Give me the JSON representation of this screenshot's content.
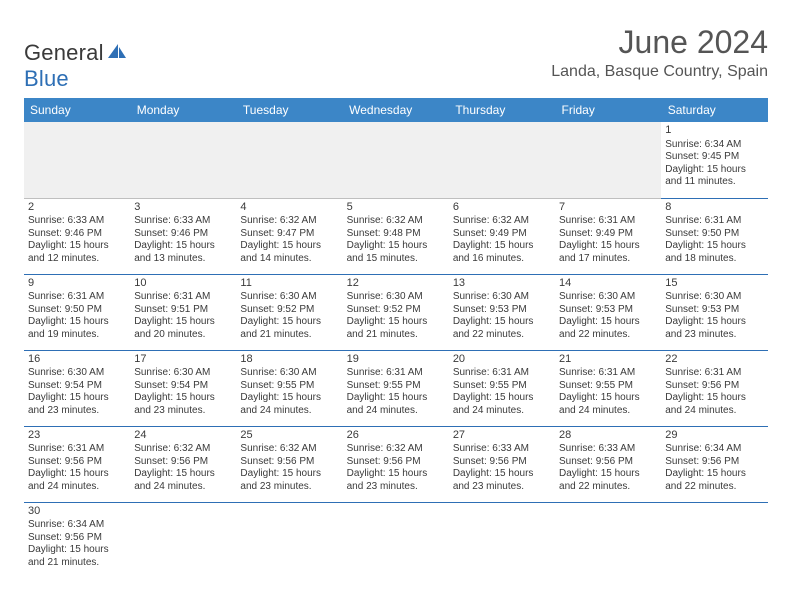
{
  "logo": {
    "word1": "General",
    "word2": "Blue"
  },
  "header": {
    "month": "June 2024",
    "location": "Landa, Basque Country, Spain"
  },
  "colors": {
    "header_bg": "#3c86c7",
    "header_text": "#ffffff",
    "cell_border": "#2e6fb5",
    "empty_bg": "#f0f0f0",
    "logo_blue": "#2e6fb5",
    "text": "#3a3a3a"
  },
  "typography": {
    "month_fontsize": 32,
    "location_fontsize": 16,
    "weekday_fontsize": 12,
    "daynum_fontsize": 11,
    "detail_fontsize": 10
  },
  "weekdays": [
    "Sunday",
    "Monday",
    "Tuesday",
    "Wednesday",
    "Thursday",
    "Friday",
    "Saturday"
  ],
  "weeks": [
    [
      null,
      null,
      null,
      null,
      null,
      null,
      {
        "n": "1",
        "sunrise": "Sunrise: 6:34 AM",
        "sunset": "Sunset: 9:45 PM",
        "daylight1": "Daylight: 15 hours",
        "daylight2": "and 11 minutes."
      }
    ],
    [
      {
        "n": "2",
        "sunrise": "Sunrise: 6:33 AM",
        "sunset": "Sunset: 9:46 PM",
        "daylight1": "Daylight: 15 hours",
        "daylight2": "and 12 minutes."
      },
      {
        "n": "3",
        "sunrise": "Sunrise: 6:33 AM",
        "sunset": "Sunset: 9:46 PM",
        "daylight1": "Daylight: 15 hours",
        "daylight2": "and 13 minutes."
      },
      {
        "n": "4",
        "sunrise": "Sunrise: 6:32 AM",
        "sunset": "Sunset: 9:47 PM",
        "daylight1": "Daylight: 15 hours",
        "daylight2": "and 14 minutes."
      },
      {
        "n": "5",
        "sunrise": "Sunrise: 6:32 AM",
        "sunset": "Sunset: 9:48 PM",
        "daylight1": "Daylight: 15 hours",
        "daylight2": "and 15 minutes."
      },
      {
        "n": "6",
        "sunrise": "Sunrise: 6:32 AM",
        "sunset": "Sunset: 9:49 PM",
        "daylight1": "Daylight: 15 hours",
        "daylight2": "and 16 minutes."
      },
      {
        "n": "7",
        "sunrise": "Sunrise: 6:31 AM",
        "sunset": "Sunset: 9:49 PM",
        "daylight1": "Daylight: 15 hours",
        "daylight2": "and 17 minutes."
      },
      {
        "n": "8",
        "sunrise": "Sunrise: 6:31 AM",
        "sunset": "Sunset: 9:50 PM",
        "daylight1": "Daylight: 15 hours",
        "daylight2": "and 18 minutes."
      }
    ],
    [
      {
        "n": "9",
        "sunrise": "Sunrise: 6:31 AM",
        "sunset": "Sunset: 9:50 PM",
        "daylight1": "Daylight: 15 hours",
        "daylight2": "and 19 minutes."
      },
      {
        "n": "10",
        "sunrise": "Sunrise: 6:31 AM",
        "sunset": "Sunset: 9:51 PM",
        "daylight1": "Daylight: 15 hours",
        "daylight2": "and 20 minutes."
      },
      {
        "n": "11",
        "sunrise": "Sunrise: 6:30 AM",
        "sunset": "Sunset: 9:52 PM",
        "daylight1": "Daylight: 15 hours",
        "daylight2": "and 21 minutes."
      },
      {
        "n": "12",
        "sunrise": "Sunrise: 6:30 AM",
        "sunset": "Sunset: 9:52 PM",
        "daylight1": "Daylight: 15 hours",
        "daylight2": "and 21 minutes."
      },
      {
        "n": "13",
        "sunrise": "Sunrise: 6:30 AM",
        "sunset": "Sunset: 9:53 PM",
        "daylight1": "Daylight: 15 hours",
        "daylight2": "and 22 minutes."
      },
      {
        "n": "14",
        "sunrise": "Sunrise: 6:30 AM",
        "sunset": "Sunset: 9:53 PM",
        "daylight1": "Daylight: 15 hours",
        "daylight2": "and 22 minutes."
      },
      {
        "n": "15",
        "sunrise": "Sunrise: 6:30 AM",
        "sunset": "Sunset: 9:53 PM",
        "daylight1": "Daylight: 15 hours",
        "daylight2": "and 23 minutes."
      }
    ],
    [
      {
        "n": "16",
        "sunrise": "Sunrise: 6:30 AM",
        "sunset": "Sunset: 9:54 PM",
        "daylight1": "Daylight: 15 hours",
        "daylight2": "and 23 minutes."
      },
      {
        "n": "17",
        "sunrise": "Sunrise: 6:30 AM",
        "sunset": "Sunset: 9:54 PM",
        "daylight1": "Daylight: 15 hours",
        "daylight2": "and 23 minutes."
      },
      {
        "n": "18",
        "sunrise": "Sunrise: 6:30 AM",
        "sunset": "Sunset: 9:55 PM",
        "daylight1": "Daylight: 15 hours",
        "daylight2": "and 24 minutes."
      },
      {
        "n": "19",
        "sunrise": "Sunrise: 6:31 AM",
        "sunset": "Sunset: 9:55 PM",
        "daylight1": "Daylight: 15 hours",
        "daylight2": "and 24 minutes."
      },
      {
        "n": "20",
        "sunrise": "Sunrise: 6:31 AM",
        "sunset": "Sunset: 9:55 PM",
        "daylight1": "Daylight: 15 hours",
        "daylight2": "and 24 minutes."
      },
      {
        "n": "21",
        "sunrise": "Sunrise: 6:31 AM",
        "sunset": "Sunset: 9:55 PM",
        "daylight1": "Daylight: 15 hours",
        "daylight2": "and 24 minutes."
      },
      {
        "n": "22",
        "sunrise": "Sunrise: 6:31 AM",
        "sunset": "Sunset: 9:56 PM",
        "daylight1": "Daylight: 15 hours",
        "daylight2": "and 24 minutes."
      }
    ],
    [
      {
        "n": "23",
        "sunrise": "Sunrise: 6:31 AM",
        "sunset": "Sunset: 9:56 PM",
        "daylight1": "Daylight: 15 hours",
        "daylight2": "and 24 minutes."
      },
      {
        "n": "24",
        "sunrise": "Sunrise: 6:32 AM",
        "sunset": "Sunset: 9:56 PM",
        "daylight1": "Daylight: 15 hours",
        "daylight2": "and 24 minutes."
      },
      {
        "n": "25",
        "sunrise": "Sunrise: 6:32 AM",
        "sunset": "Sunset: 9:56 PM",
        "daylight1": "Daylight: 15 hours",
        "daylight2": "and 23 minutes."
      },
      {
        "n": "26",
        "sunrise": "Sunrise: 6:32 AM",
        "sunset": "Sunset: 9:56 PM",
        "daylight1": "Daylight: 15 hours",
        "daylight2": "and 23 minutes."
      },
      {
        "n": "27",
        "sunrise": "Sunrise: 6:33 AM",
        "sunset": "Sunset: 9:56 PM",
        "daylight1": "Daylight: 15 hours",
        "daylight2": "and 23 minutes."
      },
      {
        "n": "28",
        "sunrise": "Sunrise: 6:33 AM",
        "sunset": "Sunset: 9:56 PM",
        "daylight1": "Daylight: 15 hours",
        "daylight2": "and 22 minutes."
      },
      {
        "n": "29",
        "sunrise": "Sunrise: 6:34 AM",
        "sunset": "Sunset: 9:56 PM",
        "daylight1": "Daylight: 15 hours",
        "daylight2": "and 22 minutes."
      }
    ],
    [
      {
        "n": "30",
        "sunrise": "Sunrise: 6:34 AM",
        "sunset": "Sunset: 9:56 PM",
        "daylight1": "Daylight: 15 hours",
        "daylight2": "and 21 minutes."
      },
      null,
      null,
      null,
      null,
      null,
      null
    ]
  ]
}
